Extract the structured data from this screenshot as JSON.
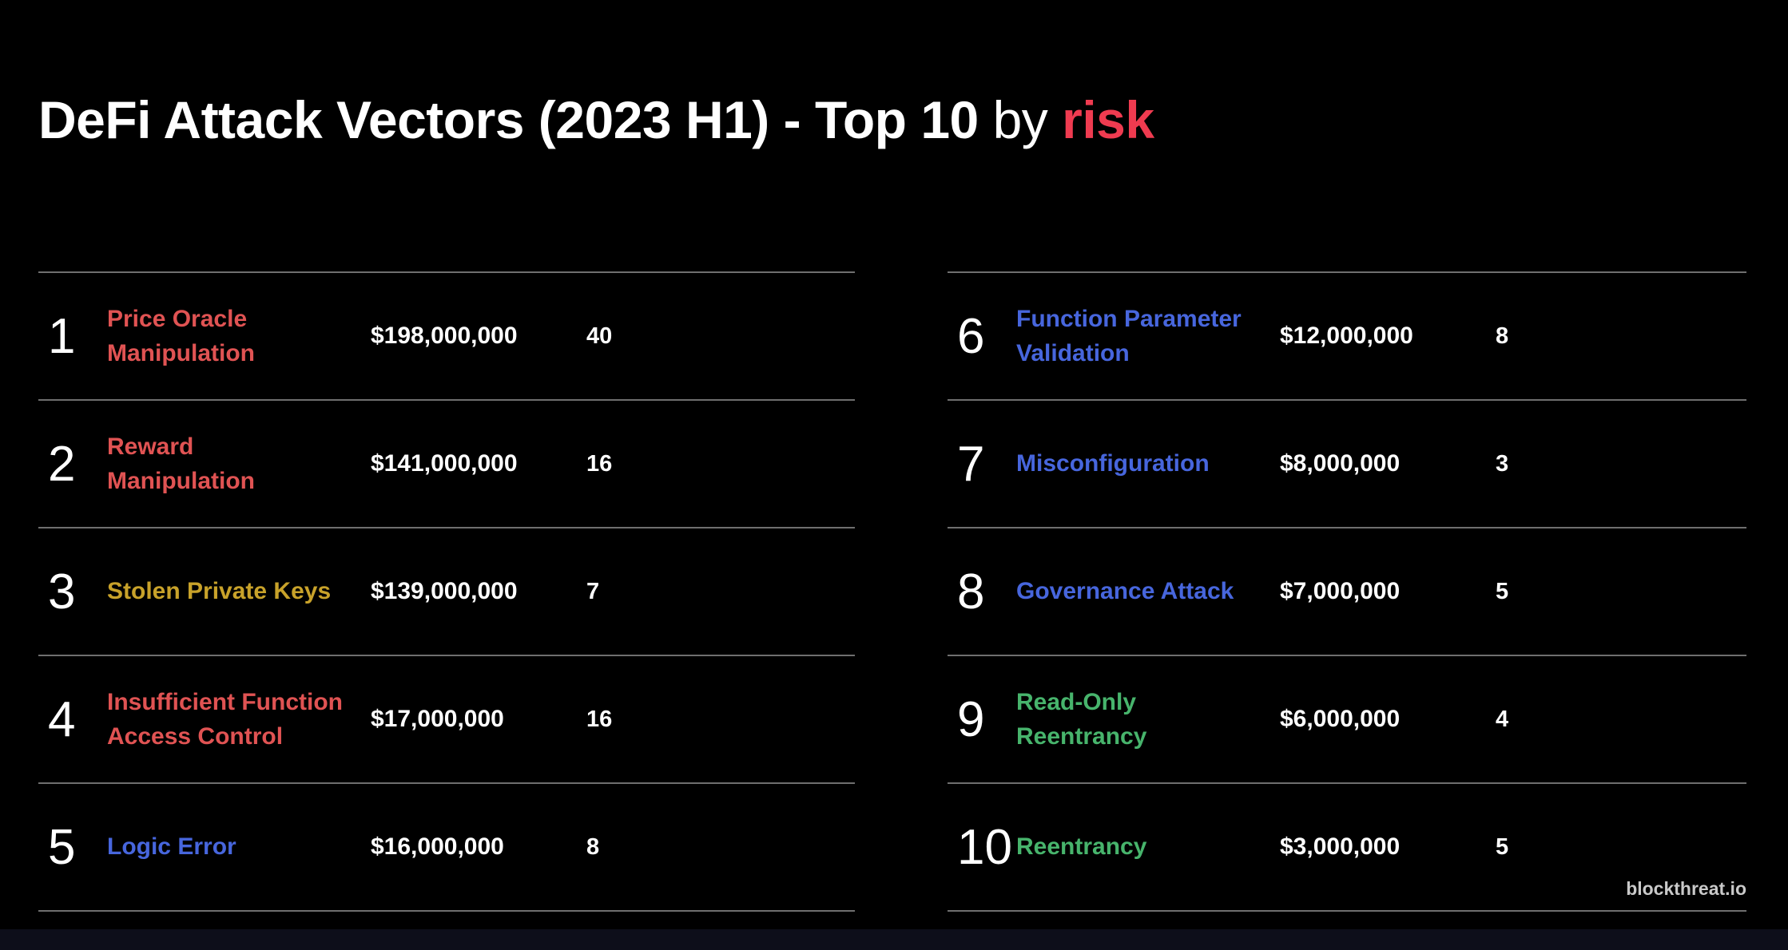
{
  "title": {
    "main": "DeFi Attack Vectors (2023 H1) - Top 10",
    "connector": "by",
    "highlight": "risk",
    "highlight_color": "#ef3b50"
  },
  "watermark": "blockthreat.io",
  "colors": {
    "background": "#000000",
    "row_line": "#6f6f6f",
    "text": "#ffffff",
    "red": "#e05353",
    "gold": "#c8a22a",
    "blue": "#4766dd",
    "green": "#47b46c"
  },
  "chart_data": {
    "type": "table",
    "title": "DeFi Attack Vectors (2023 H1) - Top 10 by risk",
    "columns": [
      "rank",
      "attack_vector",
      "losses_usd",
      "incident_count"
    ],
    "rows": [
      {
        "rank": "1",
        "name": "Price Oracle\nManipulation",
        "amount": "$198,000,000",
        "count": "40",
        "color": "#e05353"
      },
      {
        "rank": "2",
        "name": "Reward\nManipulation",
        "amount": "$141,000,000",
        "count": "16",
        "color": "#e05353"
      },
      {
        "rank": "3",
        "name": "Stolen Private Keys",
        "amount": "$139,000,000",
        "count": "7",
        "color": "#c8a22a"
      },
      {
        "rank": "4",
        "name": "Insufficient Function\nAccess Control",
        "amount": "$17,000,000",
        "count": "16",
        "color": "#e05353"
      },
      {
        "rank": "5",
        "name": "Logic Error",
        "amount": "$16,000,000",
        "count": "8",
        "color": "#4766dd"
      },
      {
        "rank": "6",
        "name": "Function Parameter\nValidation",
        "amount": "$12,000,000",
        "count": "8",
        "color": "#4766dd"
      },
      {
        "rank": "7",
        "name": "Misconfiguration",
        "amount": "$8,000,000",
        "count": "3",
        "color": "#4766dd"
      },
      {
        "rank": "8",
        "name": "Governance Attack",
        "amount": "$7,000,000",
        "count": "5",
        "color": "#4766dd"
      },
      {
        "rank": "9",
        "name": "Read-Only\nReentrancy",
        "amount": "$6,000,000",
        "count": "4",
        "color": "#47b46c"
      },
      {
        "rank": "10",
        "name": "Reentrancy",
        "amount": "$3,000,000",
        "count": "5",
        "color": "#47b46c"
      }
    ]
  }
}
